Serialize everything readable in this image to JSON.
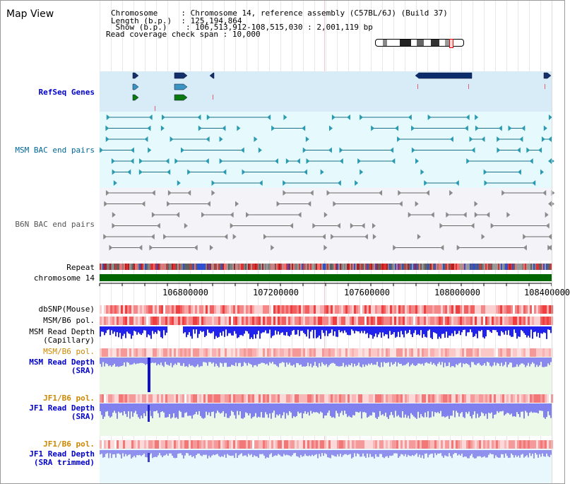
{
  "header": {
    "title": "Map View",
    "info_rows": [
      {
        "key": "Chromosome     ",
        "value": "Chromosome 14, reference assembly (C57BL/6J) (Build 37)"
      },
      {
        "key": "Length (b.p.)  ",
        "value": "125,194,864"
      },
      {
        "key": "Show (b.p.)    ",
        "value": "106,513,912-108,515,030 : 2,001,119 bp"
      },
      {
        "key": "Read coverage check span",
        "value": "10,000"
      }
    ]
  },
  "tracks": {
    "refseq": {
      "label": "RefSeq Genes",
      "color": "#0000cc"
    },
    "msm_bac": {
      "label": "MSM BAC end pairs",
      "color": "#006699"
    },
    "b6n_bac": {
      "label": "B6N BAC end pairs",
      "color": "#555555"
    },
    "repeat": {
      "label": "Repeat"
    },
    "chromosome": {
      "label": "chromosome 14",
      "color": "#006600"
    },
    "dbsnp": {
      "label": "dbSNP(Mouse)"
    },
    "msm_b6_pol": {
      "label": "MSM/B6 pol."
    },
    "msm_read_depth_cap": {
      "label_line1": "MSM Read Depth",
      "label_line2": "(Capillary)"
    },
    "msm_b6_pol_2": {
      "label": "MSM/B6 pol.",
      "color": "#cc8800"
    },
    "msm_read_depth_sra": {
      "label_line1": "MSM Read Depth",
      "label_line2": "(SRA)",
      "color": "#0000cc"
    },
    "jf1_b6_pol": {
      "label": "JF1/B6 pol.",
      "color": "#cc8800"
    },
    "jf1_read_depth_sra": {
      "label_line1": "JF1 Read Depth",
      "label_line2": "(SRA)",
      "color": "#0000cc"
    },
    "jf1_b6_pol_2": {
      "label": "JF1/B6 pol.",
      "color": "#cc8800"
    },
    "jf1_read_depth_trim": {
      "label_line1": "JF1 Read Depth",
      "label_line2": "(SRA trimmed)",
      "color": "#0000cc"
    }
  },
  "axis": {
    "ticks": [
      "106800000",
      "107200000",
      "107600000",
      "108000000",
      "108400000"
    ]
  }
}
